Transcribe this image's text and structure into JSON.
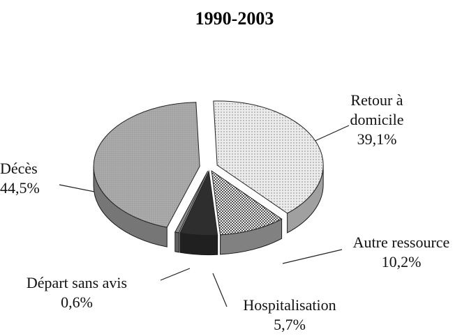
{
  "chart_data": {
    "type": "pie",
    "title": "1990-2003",
    "categories": [
      "Retour à domicile",
      "Autre ressource",
      "Hospitalisation",
      "Départ sans avis",
      "Décès"
    ],
    "values": [
      39.1,
      10.2,
      5.7,
      0.6,
      44.5
    ],
    "value_labels": [
      "39,1%",
      "10,2%",
      "5,7%",
      "0,6%",
      "44,5%"
    ],
    "colors": [
      "#e4e4e4",
      "#b8b8b8",
      "#2e2e2e",
      "#8a8a8a",
      "#a8a8a8"
    ]
  }
}
